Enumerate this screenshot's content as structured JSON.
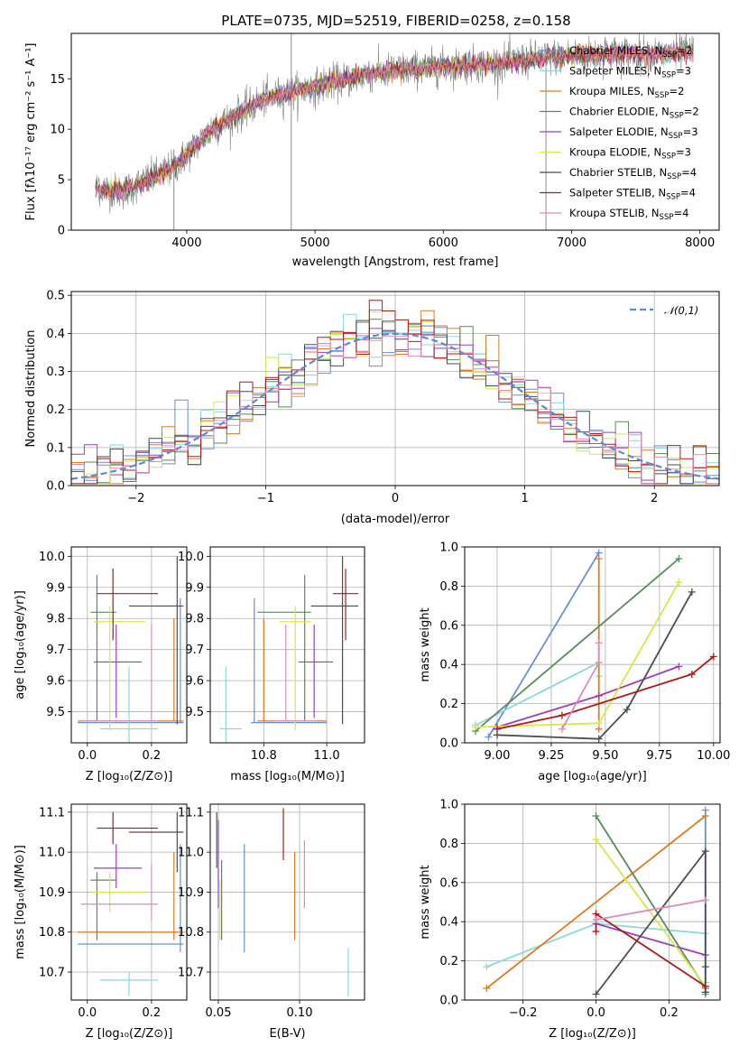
{
  "figure": {
    "title": "PLATE=0735, MJD=52519, FIBERID=0258, z=0.158"
  },
  "colors": {
    "data": "#7f7f7f",
    "Chabrier MILES": "#6a8fd6",
    "Salpeter MILES": "#8ad8dc",
    "Kroupa MILES": "#e07a22",
    "Chabrier ELODIE": "#5a8a5a",
    "Salpeter ELODIE": "#9b3fbf",
    "Kroupa ELODIE": "#d3ea4a",
    "Chabrier STELIB": "#4d4d4d",
    "Salpeter STELIB": "#b01818",
    "Kroupa STELIB": "#e08ab8"
  },
  "chart_data": [
    {
      "id": "spectrum",
      "type": "line",
      "title": "PLATE=0735, MJD=52519, FIBERID=0258, z=0.158",
      "xlabel": "wavelength [Angstrom, rest frame]",
      "ylabel": "Flux [fλ10⁻¹⁷ erg cm⁻² s⁻¹ A⁻¹]",
      "xlim": [
        3100,
        8150
      ],
      "ylim": [
        0,
        19.5
      ],
      "xticks": [
        4000,
        5000,
        6000,
        7000,
        8000
      ],
      "yticks": [
        0,
        5,
        10,
        15
      ],
      "legend_position": "top-right",
      "legend": [
        {
          "model": "Chabrier MILES",
          "label": "Chabrier MILES, N",
          "sub": "SSP",
          "eq": "=2"
        },
        {
          "model": "Salpeter MILES",
          "label": "Salpeter MILES, N",
          "sub": "SSP",
          "eq": "=3"
        },
        {
          "model": "Kroupa MILES",
          "label": "Kroupa MILES, N",
          "sub": "SSP",
          "eq": "=2"
        },
        {
          "model": "Chabrier ELODIE",
          "label": "Chabrier ELODIE, N",
          "sub": "SSP",
          "eq": "=2"
        },
        {
          "model": "Salpeter ELODIE",
          "label": "Salpeter ELODIE, N",
          "sub": "SSP",
          "eq": "=3"
        },
        {
          "model": "Kroupa ELODIE",
          "label": "Kroupa ELODIE, N",
          "sub": "SSP",
          "eq": "=3"
        },
        {
          "model": "Chabrier STELIB",
          "label": "Chabrier STELIB, N",
          "sub": "SSP",
          "eq": "=4"
        },
        {
          "model": "Salpeter STELIB",
          "label": "Salpeter STELIB, N",
          "sub": "SSP",
          "eq": "=4"
        },
        {
          "model": "Kroupa STELIB",
          "label": "Kroupa STELIB, N",
          "sub": "SSP",
          "eq": "=4"
        }
      ],
      "continuum_knots": [
        [
          3290,
          4.2
        ],
        [
          3500,
          3.8
        ],
        [
          3700,
          5.0
        ],
        [
          3900,
          6.2
        ],
        [
          4000,
          7.5
        ],
        [
          4200,
          10.0
        ],
        [
          4400,
          11.5
        ],
        [
          4600,
          13.0
        ],
        [
          4800,
          13.6
        ],
        [
          5000,
          14.2
        ],
        [
          5200,
          14.8
        ],
        [
          5400,
          15.4
        ],
        [
          5600,
          15.8
        ],
        [
          5800,
          16.0
        ],
        [
          6000,
          16.2
        ],
        [
          6200,
          16.4
        ],
        [
          6400,
          16.5
        ],
        [
          6600,
          16.8
        ],
        [
          6800,
          17.1
        ],
        [
          7000,
          17.3
        ],
        [
          7200,
          17.4
        ],
        [
          7400,
          17.5
        ],
        [
          7600,
          17.4
        ],
        [
          7800,
          17.5
        ],
        [
          7950,
          17.7
        ]
      ],
      "spikes": [
        {
          "x": 4815,
          "y_low": 0,
          "y_high": 19.5
        },
        {
          "x": 3900,
          "y_low": 0,
          "y_high": 8
        },
        {
          "x": 6800,
          "y_low": 0,
          "y_high": 17
        }
      ]
    },
    {
      "id": "residuals",
      "type": "step",
      "xlabel": "(data-model)/error",
      "ylabel": "Normed distribution",
      "xlim": [
        -2.5,
        2.5
      ],
      "ylim": [
        0,
        0.51
      ],
      "xticks": [
        -2,
        -1,
        0,
        1,
        2
      ],
      "yticks": [
        0.0,
        0.1,
        0.2,
        0.3,
        0.4,
        0.5
      ],
      "grid": true,
      "legend_position": "top-right",
      "reference_curve": {
        "name": "𝒩(0,1)",
        "mean": 0,
        "sigma": 1,
        "style": "dashed"
      },
      "bin_width": 0.1
    },
    {
      "id": "age-vs-Z",
      "type": "errorbar",
      "xlabel": "Z [log₁₀(Z/Z⊙)]",
      "ylabel": "age  [log₁₀(age/yr)]",
      "xlim": [
        -0.05,
        0.31
      ],
      "ylim": [
        9.4,
        10.03
      ],
      "xticks": [
        0.0,
        0.2
      ],
      "yticks": [
        9.5,
        9.6,
        9.7,
        9.8,
        9.9,
        10.0
      ],
      "grid": true,
      "points": [
        {
          "model": "Chabrier MILES",
          "x": 0.29,
          "xerr": [
            0.32,
            0.01
          ],
          "y": 9.465,
          "yerr": [
            0.0,
            0.4
          ]
        },
        {
          "model": "Salpeter MILES",
          "x": 0.13,
          "xerr": [
            0.09,
            0.09
          ],
          "y": 9.445,
          "yerr": [
            0.05,
            0.2
          ]
        },
        {
          "model": "Kroupa MILES",
          "x": 0.27,
          "xerr": [
            0.3,
            0.03
          ],
          "y": 9.47,
          "yerr": [
            0.0,
            0.33
          ]
        },
        {
          "model": "Chabrier ELODIE",
          "x": 0.03,
          "xerr": [
            0.02,
            0.06
          ],
          "y": 9.82,
          "yerr": [
            0.35,
            0.12
          ]
        },
        {
          "model": "Salpeter ELODIE",
          "x": 0.09,
          "xerr": [
            0.07,
            0.08
          ],
          "y": 9.66,
          "yerr": [
            0.18,
            0.12
          ]
        },
        {
          "model": "Kroupa ELODIE",
          "x": 0.07,
          "xerr": [
            0.05,
            0.11
          ],
          "y": 9.79,
          "yerr": [
            0.35,
            0.05
          ]
        },
        {
          "model": "Chabrier STELIB",
          "x": 0.28,
          "xerr": [
            0.15,
            0.02
          ],
          "y": 9.84,
          "yerr": [
            0.38,
            0.16
          ]
        },
        {
          "model": "Salpeter STELIB",
          "x": 0.08,
          "xerr": [
            0.05,
            0.14
          ],
          "y": 9.88,
          "yerr": [
            0.15,
            0.08
          ]
        },
        {
          "model": "Kroupa STELIB",
          "x": 0.2,
          "xerr": [
            0.22,
            0.02
          ],
          "y": 9.47,
          "yerr": [
            0.0,
            0.31
          ]
        }
      ]
    },
    {
      "id": "age-vs-mass",
      "type": "errorbar",
      "xlabel": "mass [log₁₀(M/M⊙)]",
      "ylabel": "",
      "xlim": [
        10.63,
        11.12
      ],
      "ylim": [
        9.4,
        10.03
      ],
      "xticks": [
        10.8,
        11.0
      ],
      "yticks": [
        9.5,
        9.6,
        9.7,
        9.8,
        9.9,
        10.0
      ],
      "grid": true,
      "points": [
        {
          "model": "Chabrier MILES",
          "x": 10.77,
          "xerr": [
            0.01,
            0.23
          ],
          "y": 9.465,
          "yerr": [
            0.0,
            0.4
          ]
        },
        {
          "model": "Salpeter MILES",
          "x": 10.68,
          "xerr": [
            0.02,
            0.05
          ],
          "y": 9.445,
          "yerr": [
            0.05,
            0.2
          ]
        },
        {
          "model": "Kroupa MILES",
          "x": 10.8,
          "xerr": [
            0.02,
            0.2
          ],
          "y": 9.47,
          "yerr": [
            0.0,
            0.33
          ]
        },
        {
          "model": "Chabrier ELODIE",
          "x": 10.93,
          "xerr": [
            0.15,
            0.02
          ],
          "y": 9.82,
          "yerr": [
            0.35,
            0.12
          ]
        },
        {
          "model": "Salpeter ELODIE",
          "x": 10.96,
          "xerr": [
            0.05,
            0.06
          ],
          "y": 9.66,
          "yerr": [
            0.18,
            0.12
          ]
        },
        {
          "model": "Kroupa ELODIE",
          "x": 10.9,
          "xerr": [
            0.05,
            0.05
          ],
          "y": 9.79,
          "yerr": [
            0.35,
            0.05
          ]
        },
        {
          "model": "Chabrier STELIB",
          "x": 11.05,
          "xerr": [
            0.1,
            0.05
          ],
          "y": 9.84,
          "yerr": [
            0.38,
            0.16
          ]
        },
        {
          "model": "Salpeter STELIB",
          "x": 11.06,
          "xerr": [
            0.04,
            0.04
          ],
          "y": 9.88,
          "yerr": [
            0.15,
            0.08
          ]
        },
        {
          "model": "Kroupa STELIB",
          "x": 10.87,
          "xerr": [
            0.04,
            0.1
          ],
          "y": 9.47,
          "yerr": [
            0.0,
            0.31
          ]
        }
      ]
    },
    {
      "id": "weight-vs-age",
      "type": "line",
      "xlabel": "age  [log₁₀(age/yr)]",
      "ylabel": "mass weight",
      "xlim": [
        8.85,
        10.03
      ],
      "ylim": [
        0,
        1
      ],
      "xticks": [
        9.0,
        9.25,
        9.5,
        9.75,
        10.0
      ],
      "xticklabels": [
        "9.00",
        "9.25",
        "9.50",
        "9.75",
        "10.00"
      ],
      "yticks": [
        0.0,
        0.2,
        0.4,
        0.6,
        0.8,
        1.0
      ],
      "grid": true,
      "series": [
        {
          "model": "Chabrier MILES",
          "x": [
            8.96,
            9.47
          ],
          "y": [
            0.03,
            0.97
          ]
        },
        {
          "model": "Salpeter MILES",
          "x": [
            8.9,
            9.47,
            9.47
          ],
          "y": [
            0.09,
            0.41,
            0.34
          ]
        },
        {
          "model": "Kroupa MILES",
          "x": [
            9.47,
            9.47
          ],
          "y": [
            0.07,
            0.94
          ]
        },
        {
          "model": "Chabrier ELODIE",
          "x": [
            8.9,
            9.84
          ],
          "y": [
            0.06,
            0.94
          ]
        },
        {
          "model": "Salpeter ELODIE",
          "x": [
            9.0,
            9.47,
            9.84
          ],
          "y": [
            0.08,
            0.24,
            0.39
          ]
        },
        {
          "model": "Kroupa ELODIE",
          "x": [
            8.9,
            9.47,
            9.84
          ],
          "y": [
            0.08,
            0.1,
            0.82
          ]
        },
        {
          "model": "Chabrier STELIB",
          "x": [
            9.0,
            9.47,
            9.6,
            9.9
          ],
          "y": [
            0.04,
            0.02,
            0.17,
            0.77
          ]
        },
        {
          "model": "Salpeter STELIB",
          "x": [
            9.0,
            9.3,
            9.9,
            10.0
          ],
          "y": [
            0.07,
            0.14,
            0.35,
            0.44
          ]
        },
        {
          "model": "Kroupa STELIB",
          "x": [
            9.3,
            9.47,
            9.47
          ],
          "y": [
            0.07,
            0.41,
            0.51
          ]
        }
      ]
    },
    {
      "id": "mass-vs-Z",
      "type": "errorbar",
      "xlabel": "Z [log₁₀(Z/Z⊙)]",
      "ylabel": "mass [log₁₀(M/M⊙)]",
      "xlim": [
        -0.05,
        0.31
      ],
      "ylim": [
        10.63,
        11.12
      ],
      "xticks": [
        0.0,
        0.2
      ],
      "yticks": [
        10.7,
        10.8,
        10.9,
        11.0,
        11.1
      ],
      "grid": true,
      "points": [
        {
          "model": "Chabrier MILES",
          "x": 0.29,
          "xerr": [
            0.32,
            0.01
          ],
          "y": 10.77,
          "yerr": [
            0.02,
            0.25
          ]
        },
        {
          "model": "Salpeter MILES",
          "x": 0.13,
          "xerr": [
            0.09,
            0.09
          ],
          "y": 10.68,
          "yerr": [
            0.04,
            0.02
          ]
        },
        {
          "model": "Kroupa MILES",
          "x": 0.27,
          "xerr": [
            0.3,
            0.03
          ],
          "y": 10.8,
          "yerr": [
            0.02,
            0.2
          ]
        },
        {
          "model": "Chabrier ELODIE",
          "x": 0.03,
          "xerr": [
            0.02,
            0.06
          ],
          "y": 10.93,
          "yerr": [
            0.15,
            0.02
          ]
        },
        {
          "model": "Salpeter ELODIE",
          "x": 0.09,
          "xerr": [
            0.07,
            0.08
          ],
          "y": 10.96,
          "yerr": [
            0.05,
            0.06
          ]
        },
        {
          "model": "Kroupa ELODIE",
          "x": 0.07,
          "xerr": [
            0.05,
            0.11
          ],
          "y": 10.9,
          "yerr": [
            0.05,
            0.05
          ]
        },
        {
          "model": "Chabrier STELIB",
          "x": 0.28,
          "xerr": [
            0.15,
            0.02
          ],
          "y": 11.05,
          "yerr": [
            0.1,
            0.05
          ]
        },
        {
          "model": "Salpeter STELIB",
          "x": 0.08,
          "xerr": [
            0.05,
            0.14
          ],
          "y": 11.06,
          "yerr": [
            0.04,
            0.04
          ]
        },
        {
          "model": "Kroupa STELIB",
          "x": 0.2,
          "xerr": [
            0.22,
            0.02
          ],
          "y": 10.87,
          "yerr": [
            0.04,
            0.1
          ]
        }
      ]
    },
    {
      "id": "mass-vs-ebv",
      "type": "errorbar",
      "xlabel": "E(B-V)",
      "ylabel": "",
      "xlim": [
        0.045,
        0.14
      ],
      "ylim": [
        10.63,
        11.12
      ],
      "xticks": [
        0.05,
        0.1
      ],
      "xticklabels": [
        "0.05",
        "0.10"
      ],
      "yticks": [
        10.7,
        10.8,
        10.9,
        11.0,
        11.1
      ],
      "grid": true,
      "points": [
        {
          "model": "Chabrier MILES",
          "x": 0.066,
          "xerr": [
            0,
            0
          ],
          "y": 10.77,
          "yerr": [
            0.02,
            0.25
          ]
        },
        {
          "model": "Salpeter MILES",
          "x": 0.13,
          "xerr": [
            0,
            0
          ],
          "y": 10.68,
          "yerr": [
            0.04,
            0.08
          ]
        },
        {
          "model": "Kroupa MILES",
          "x": 0.097,
          "xerr": [
            0,
            0
          ],
          "y": 10.8,
          "yerr": [
            0.02,
            0.2
          ]
        },
        {
          "model": "Chabrier ELODIE",
          "x": 0.052,
          "xerr": [
            0,
            0
          ],
          "y": 10.93,
          "yerr": [
            0.15,
            0.05
          ]
        },
        {
          "model": "Salpeter ELODIE",
          "x": 0.05,
          "xerr": [
            0,
            0
          ],
          "y": 10.96,
          "yerr": [
            0.1,
            0.12
          ]
        },
        {
          "model": "Kroupa ELODIE",
          "x": 0.051,
          "xerr": [
            0,
            0
          ],
          "y": 10.85,
          "yerr": [
            0.07,
            0.08
          ]
        },
        {
          "model": "Chabrier STELIB",
          "x": 0.049,
          "xerr": [
            0,
            0
          ],
          "y": 11.05,
          "yerr": [
            0.09,
            0.05
          ]
        },
        {
          "model": "Salpeter STELIB",
          "x": 0.09,
          "xerr": [
            0,
            0
          ],
          "y": 11.06,
          "yerr": [
            0.08,
            0.05
          ]
        },
        {
          "model": "Kroupa STELIB",
          "x": 0.103,
          "xerr": [
            0,
            0
          ],
          "y": 10.95,
          "yerr": [
            0.09,
            0.08
          ]
        }
      ]
    },
    {
      "id": "weight-vs-Z",
      "type": "line",
      "xlabel": "Z [log₁₀(Z/Z⊙)]",
      "ylabel": "mass weight",
      "xlim": [
        -0.36,
        0.34
      ],
      "ylim": [
        0,
        1
      ],
      "xticks": [
        -0.2,
        0.0,
        0.2
      ],
      "xticklabels": [
        "−0.2",
        "0.0",
        "0.2"
      ],
      "yticks": [
        0.0,
        0.2,
        0.4,
        0.6,
        0.8,
        1.0
      ],
      "grid": true,
      "series": [
        {
          "model": "Chabrier MILES",
          "x": [
            0.3,
            0.3
          ],
          "y": [
            0.03,
            0.97
          ]
        },
        {
          "model": "Salpeter MILES",
          "x": [
            -0.3,
            0.0,
            0.3,
            0.3
          ],
          "y": [
            0.17,
            0.39,
            0.34,
            0.09
          ]
        },
        {
          "model": "Kroupa MILES",
          "x": [
            -0.3,
            0.3
          ],
          "y": [
            0.06,
            0.94
          ]
        },
        {
          "model": "Chabrier ELODIE",
          "x": [
            0.0,
            0.3
          ],
          "y": [
            0.94,
            0.06
          ]
        },
        {
          "model": "Salpeter ELODIE",
          "x": [
            0.0,
            0.3
          ],
          "y": [
            0.39,
            0.23
          ]
        },
        {
          "model": "Kroupa ELODIE",
          "x": [
            0.0,
            0.3
          ],
          "y": [
            0.82,
            0.07
          ]
        },
        {
          "model": "Chabrier STELIB",
          "x": [
            0.0,
            0.3,
            0.3,
            0.3
          ],
          "y": [
            0.03,
            0.76,
            0.17,
            0.04
          ]
        },
        {
          "model": "Salpeter STELIB",
          "x": [
            0.0,
            0.0,
            0.3
          ],
          "y": [
            0.35,
            0.44,
            0.07
          ]
        },
        {
          "model": "Kroupa STELIB",
          "x": [
            0.0,
            0.3
          ],
          "y": [
            0.41,
            0.51
          ]
        }
      ]
    }
  ]
}
